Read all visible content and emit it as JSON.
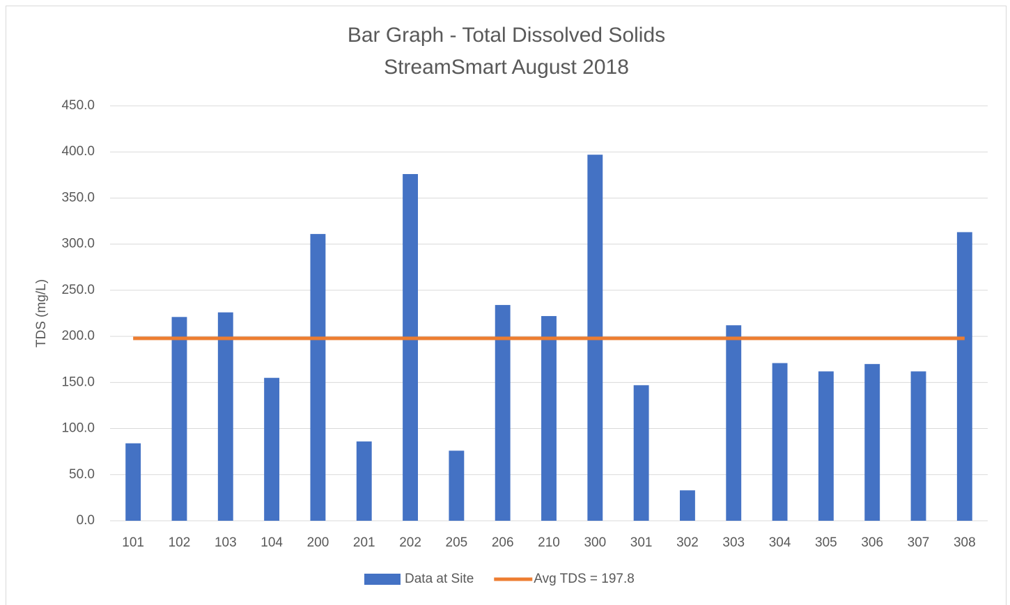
{
  "chart_data": {
    "type": "bar",
    "title": "Bar Graph - Total Dissolved Solids",
    "subtitle": "StreamSmart August 2018",
    "y_label": "TDS (mg/L)",
    "categories": [
      "101",
      "102",
      "103",
      "104",
      "200",
      "201",
      "202",
      "205",
      "206",
      "210",
      "300",
      "301",
      "302",
      "303",
      "304",
      "305",
      "306",
      "307",
      "308"
    ],
    "series": [
      {
        "name": "Data at Site",
        "type": "bar",
        "color": "#4472c4",
        "values": [
          84,
          221,
          226,
          155,
          311,
          86,
          376,
          76,
          234,
          222,
          397,
          147,
          33,
          212,
          171,
          162,
          170,
          162,
          313
        ]
      },
      {
        "name": "Avg TDS = 197.8",
        "type": "line",
        "color": "#ed7d31",
        "values": [
          197.8,
          197.8,
          197.8,
          197.8,
          197.8,
          197.8,
          197.8,
          197.8,
          197.8,
          197.8,
          197.8,
          197.8,
          197.8,
          197.8,
          197.8,
          197.8,
          197.8,
          197.8,
          197.8
        ]
      }
    ],
    "ylim": [
      0,
      450
    ],
    "yticks": [
      {
        "value": 0,
        "label": "0.0"
      },
      {
        "value": 50,
        "label": "50.0"
      },
      {
        "value": 100,
        "label": "100.0"
      },
      {
        "value": 150,
        "label": "150.0"
      },
      {
        "value": 200,
        "label": "200.0"
      },
      {
        "value": 250,
        "label": "250.0"
      },
      {
        "value": 300,
        "label": "300.0"
      },
      {
        "value": 350,
        "label": "350.0"
      },
      {
        "value": 400,
        "label": "400.0"
      },
      {
        "value": 450,
        "label": "450.0"
      }
    ],
    "grid": true,
    "legend": "bottom"
  }
}
